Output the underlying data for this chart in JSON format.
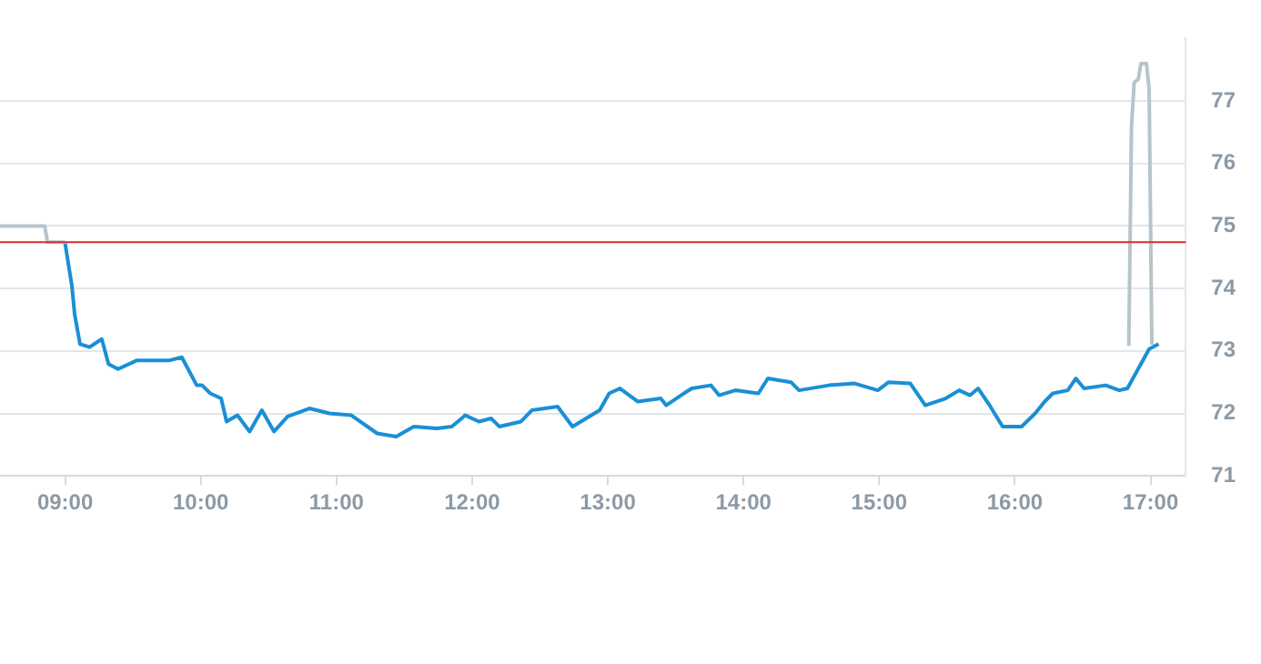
{
  "chart_data": {
    "type": "line",
    "marker": "none",
    "grid": "y",
    "legend": false,
    "xlim": [
      8.52,
      17.26
    ],
    "xticks": [
      {
        "value": 9,
        "label": "09:00"
      },
      {
        "value": 10,
        "label": "10:00"
      },
      {
        "value": 11,
        "label": "11:00"
      },
      {
        "value": 12,
        "label": "12:00"
      },
      {
        "value": 13,
        "label": "13:00"
      },
      {
        "value": 14,
        "label": "14:00"
      },
      {
        "value": 15,
        "label": "15:00"
      },
      {
        "value": 16,
        "label": "16:00"
      },
      {
        "value": 17,
        "label": "17:00"
      }
    ],
    "ylim": [
      71,
      78
    ],
    "yticks": [
      71,
      72,
      73,
      74,
      75,
      76,
      77
    ],
    "ref_lines": [
      {
        "axis": "y",
        "value": 74.74,
        "color": "#d32f2f"
      }
    ],
    "series": [
      {
        "color": "#b7c4cc",
        "x": [
          8.52,
          8.85,
          8.87,
          9.0,
          null,
          16.84,
          16.86,
          16.88,
          16.91,
          16.93,
          16.97,
          16.99,
          17.01
        ],
        "values": [
          75.0,
          75.0,
          74.74,
          74.74,
          null,
          73.08,
          76.6,
          77.3,
          77.35,
          77.6,
          77.6,
          77.2,
          73.1
        ]
      },
      {
        "color": "#1a8fd6",
        "x": [
          9.0,
          9.05,
          9.07,
          9.11,
          9.18,
          9.27,
          9.32,
          9.39,
          9.53,
          9.77,
          9.86,
          9.97,
          10.01,
          10.07,
          10.15,
          10.19,
          10.27,
          10.36,
          10.45,
          10.54,
          10.64,
          10.8,
          10.95,
          11.11,
          11.3,
          11.44,
          11.57,
          11.74,
          11.85,
          11.95,
          12.05,
          12.14,
          12.2,
          12.36,
          12.44,
          12.63,
          12.74,
          12.94,
          13.01,
          13.09,
          13.22,
          13.39,
          13.43,
          13.56,
          13.62,
          13.76,
          13.82,
          13.94,
          14.11,
          14.18,
          14.35,
          14.41,
          14.63,
          14.82,
          14.99,
          15.07,
          15.23,
          15.34,
          15.49,
          15.59,
          15.67,
          15.73,
          15.82,
          15.91,
          16.05,
          16.15,
          16.22,
          16.28,
          16.39,
          16.45,
          16.51,
          16.67,
          16.77,
          16.83,
          16.99,
          17.06
        ],
        "values": [
          74.72,
          74.04,
          73.59,
          73.11,
          73.06,
          73.19,
          72.79,
          72.71,
          72.85,
          72.85,
          72.9,
          72.45,
          72.45,
          72.32,
          72.24,
          71.87,
          71.97,
          71.71,
          72.05,
          71.71,
          71.95,
          72.08,
          72.0,
          71.97,
          71.68,
          71.63,
          71.79,
          71.76,
          71.79,
          71.97,
          71.87,
          71.92,
          71.79,
          71.87,
          72.05,
          72.11,
          71.79,
          72.05,
          72.32,
          72.4,
          72.19,
          72.24,
          72.13,
          72.32,
          72.4,
          72.45,
          72.29,
          72.37,
          72.32,
          72.56,
          72.5,
          72.37,
          72.45,
          72.48,
          72.37,
          72.5,
          72.48,
          72.13,
          72.24,
          72.37,
          72.29,
          72.4,
          72.11,
          71.79,
          71.79,
          72.0,
          72.19,
          72.32,
          72.37,
          72.56,
          72.4,
          72.45,
          72.37,
          72.4,
          73.03,
          73.11
        ]
      }
    ]
  }
}
